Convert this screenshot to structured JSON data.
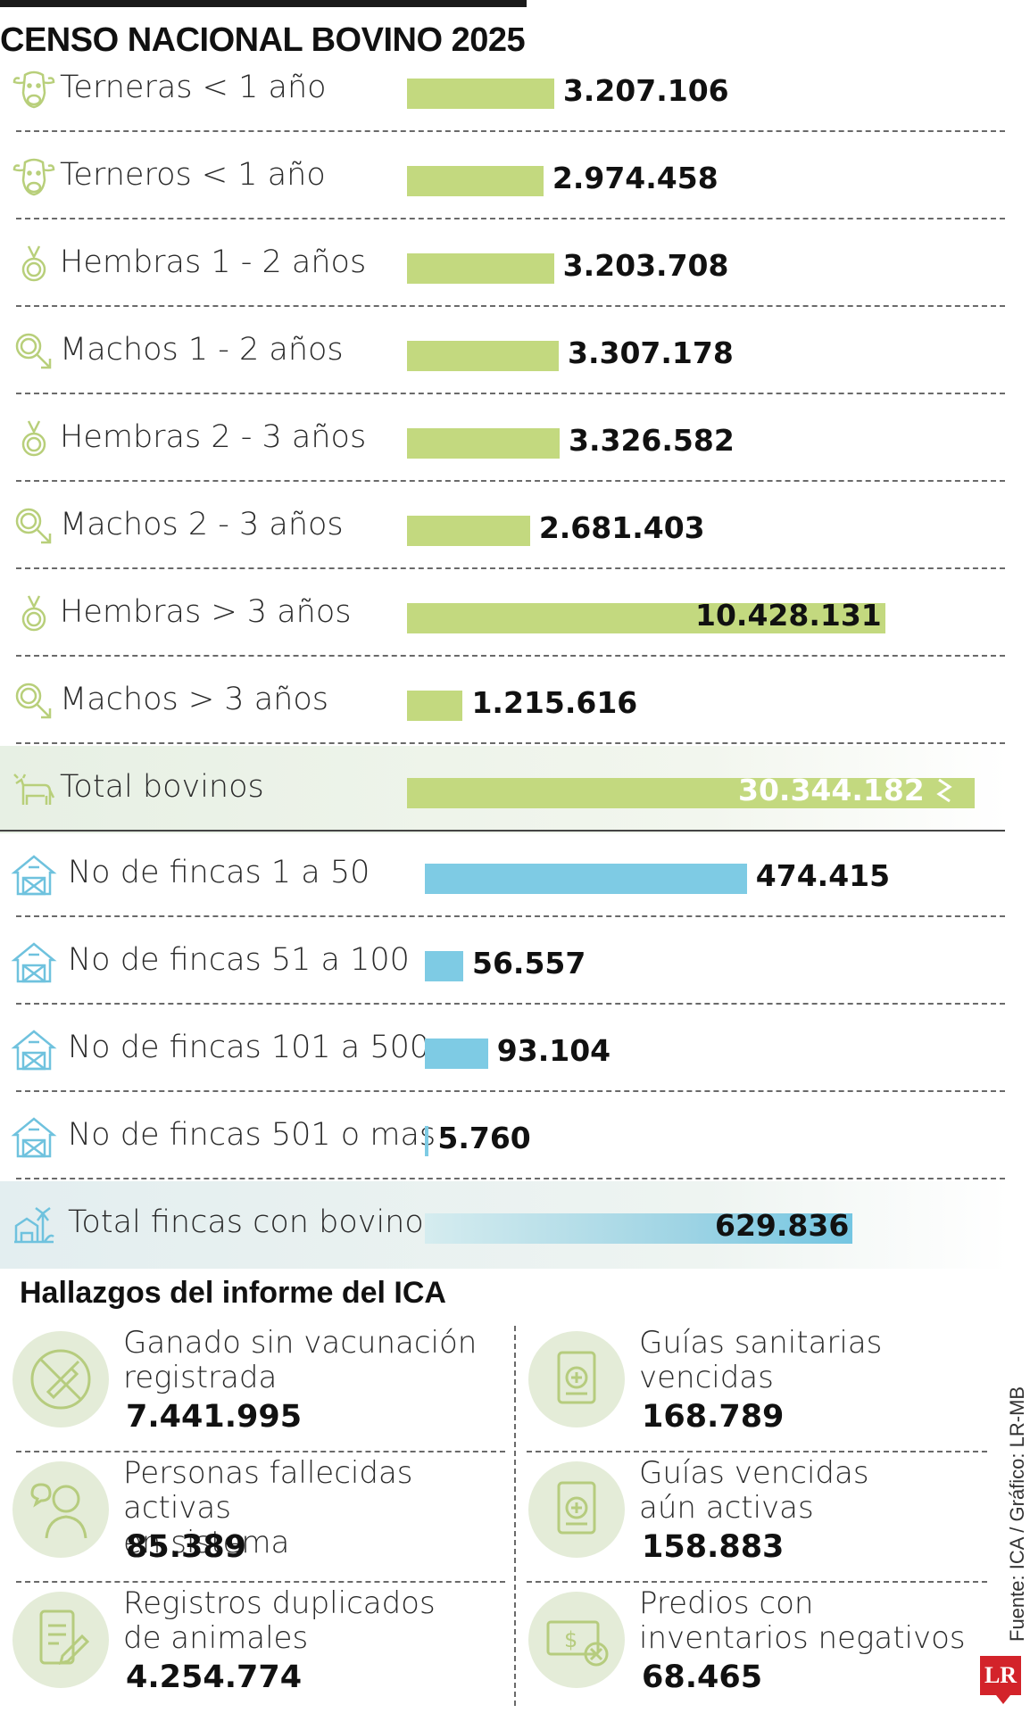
{
  "title": "CENSO NACIONAL BOVINO 2025",
  "chart_data": [
    {
      "type": "bar",
      "orientation": "horizontal",
      "categories": [
        "Terneras < 1 año",
        "Terneros < 1 año",
        "Hembras 1 - 2 años",
        "Machos 1 - 2 años",
        "Hembras 2 - 3 años",
        "Machos 2 - 3 años",
        "Hembras > 3 años",
        "Machos > 3 años",
        "Total bovinos"
      ],
      "values": [
        3207106,
        2974458,
        3203708,
        3307178,
        3326582,
        2681403,
        10428131,
        1215616,
        30344182
      ],
      "value_labels": [
        "3.207.106",
        "2.974.458",
        "3.203.708",
        "3.307.178",
        "3.326.582",
        "2.681.403",
        "10.428.131",
        "1.215.616",
        "30.344.182"
      ],
      "icons": [
        "cow-head-icon",
        "cow-head-icon",
        "female-symbol-icon",
        "male-symbol-icon",
        "female-symbol-icon",
        "male-symbol-icon",
        "female-symbol-icon",
        "male-symbol-icon",
        "cow-icon"
      ],
      "color": "#c3d97f",
      "axis_break_on_total": true
    },
    {
      "type": "bar",
      "orientation": "horizontal",
      "categories": [
        "No de fincas 1 a 50",
        "No de fincas 51 a 100",
        "No de fincas 101 a 500",
        "No de fincas 501 o mas",
        "Total fincas con bovinos"
      ],
      "values": [
        474415,
        56557,
        93104,
        5760,
        629836
      ],
      "value_labels": [
        "474.415",
        "56.557",
        "93.104",
        "5.760",
        "629.836"
      ],
      "icons": [
        "barn-icon",
        "barn-icon",
        "barn-icon",
        "barn-icon",
        "farm-icon"
      ],
      "color": "#7ecbe4"
    }
  ],
  "findings": {
    "title": "Hallazgos del informe del ICA",
    "items": [
      {
        "line1": "Ganado sin vacunación",
        "line2": "registrada",
        "value": "7.441.995",
        "icon": "no-vaccine-icon"
      },
      {
        "line1": "Guías sanitarias",
        "line2": "vencidas",
        "value": "168.789",
        "icon": "medical-document-icon"
      },
      {
        "line1": "Personas fallecidas activas",
        "line2": "en sistema",
        "value": "85.389",
        "icon": "person-icon"
      },
      {
        "line1": "Guías vencidas",
        "line2": "aún activas",
        "value": "158.883",
        "icon": "medical-document-icon"
      },
      {
        "line1": "Registros duplicados",
        "line2": "de animales",
        "value": "4.254.774",
        "icon": "clipboard-edit-icon"
      },
      {
        "line1": "Predios con",
        "line2": "inventarios negativos",
        "value": "68.465",
        "icon": "money-error-icon"
      }
    ]
  },
  "source": "Fuente: ICA / Gráfico: LR-MB",
  "logo": "LR"
}
